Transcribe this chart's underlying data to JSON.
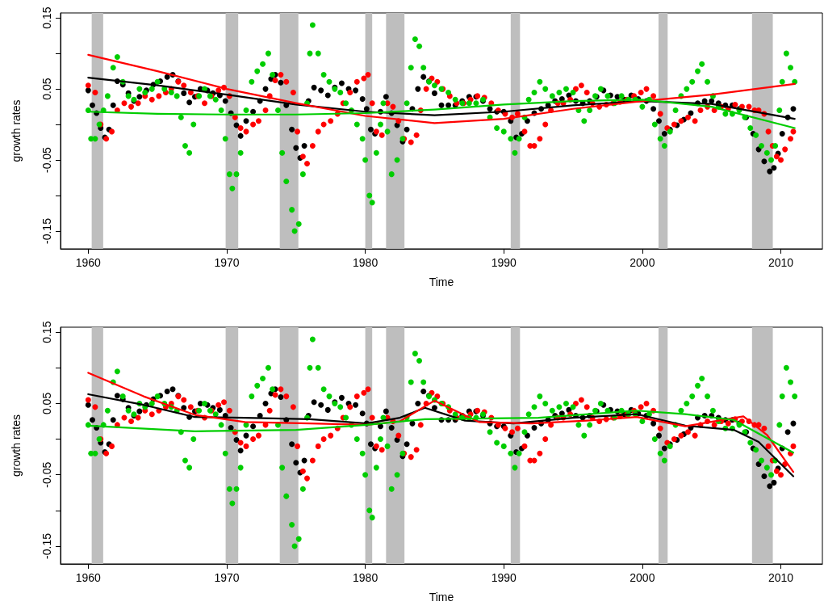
{
  "chart_data": [
    {
      "type": "scatter",
      "xlabel": "Time",
      "ylabel": "growth rates",
      "xlim": [
        1958,
        2013
      ],
      "xticks": [
        1960,
        1970,
        1980,
        1990,
        2000,
        2010
      ],
      "ylim": [
        -0.175,
        0.157
      ],
      "yticks": [
        -0.15,
        {
          "value": -0.1,
          "label": null
        },
        -0.05,
        {
          "value": 0,
          "label": null
        },
        0.05,
        {
          "value": 0.1,
          "label": null
        },
        0.15
      ],
      "grid": false,
      "marker": "circle",
      "bands": [
        {
          "axis": "x",
          "from": 1960.25,
          "to": 1961.08,
          "color": "#bebebe"
        },
        {
          "axis": "x",
          "from": 1969.92,
          "to": 1970.83,
          "color": "#bebebe"
        },
        {
          "axis": "x",
          "from": 1973.83,
          "to": 1975.17,
          "color": "#bebebe"
        },
        {
          "axis": "x",
          "from": 1980.0,
          "to": 1980.5,
          "color": "#bebebe"
        },
        {
          "axis": "x",
          "from": 1981.5,
          "to": 1982.83,
          "color": "#bebebe"
        },
        {
          "axis": "x",
          "from": 1990.5,
          "to": 1991.17,
          "color": "#bebebe"
        },
        {
          "axis": "x",
          "from": 2001.17,
          "to": 2001.83,
          "color": "#bebebe"
        },
        {
          "axis": "x",
          "from": 2007.92,
          "to": 2009.42,
          "color": "#bebebe"
        }
      ],
      "series": [
        {
          "color": "#000000",
          "x": [
            1960.0,
            1960.3,
            1960.6,
            1960.9,
            1961.2,
            1961.5,
            1961.8,
            1962.1,
            1962.5,
            1962.9,
            1963.3,
            1963.7,
            1964.2,
            1964.7,
            1965.2,
            1965.7,
            1966.1,
            1966.5,
            1966.9,
            1967.3,
            1967.7,
            1968.1,
            1968.6,
            1969.0,
            1969.5,
            1969.9,
            1970.3,
            1970.7,
            1971.0,
            1971.4,
            1971.9,
            1972.4,
            1972.8,
            1973.2,
            1973.5,
            1973.9,
            1974.3,
            1974.7,
            1975.0,
            1975.3,
            1975.6,
            1975.9,
            1976.3,
            1976.8,
            1977.3,
            1977.8,
            1978.3,
            1978.8,
            1979.3,
            1979.8,
            1980.1,
            1980.4,
            1980.7,
            1981.1,
            1981.5,
            1981.9,
            1982.3,
            1982.7,
            1983.0,
            1983.4,
            1983.8,
            1984.2,
            1984.6,
            1985.0,
            1985.5,
            1986.0,
            1986.5,
            1987.0,
            1987.5,
            1988.0,
            1988.5,
            1989.0,
            1989.5,
            1990.0,
            1990.5,
            1990.9,
            1991.3,
            1991.7,
            1992.2,
            1992.7,
            1993.2,
            1993.7,
            1994.2,
            1994.7,
            1995.2,
            1995.7,
            1996.2,
            1996.7,
            1997.2,
            1997.7,
            1998.2,
            1998.7,
            1999.2,
            1999.7,
            2000.3,
            2000.8,
            2001.2,
            2001.6,
            2002.0,
            2002.5,
            2003.0,
            2003.5,
            2004.0,
            2004.5,
            2005.0,
            2005.5,
            2006.0,
            2006.5,
            2007.0,
            2007.5,
            2008.0,
            2008.4,
            2008.8,
            2009.2,
            2009.5,
            2009.8,
            2010.1,
            2010.5,
            2010.9
          ],
          "values": [
            0.048,
            0.027,
            0.016,
            -0.005,
            -0.018,
            -0.007,
            0.027,
            0.061,
            0.056,
            0.044,
            0.033,
            0.039,
            0.048,
            0.056,
            0.061,
            0.067,
            0.07,
            0.061,
            0.044,
            0.031,
            0.039,
            0.05,
            0.048,
            0.044,
            0.041,
            0.033,
            0.016,
            -0.001,
            -0.016,
            0.005,
            0.018,
            0.033,
            0.05,
            0.064,
            0.07,
            0.059,
            0.027,
            -0.007,
            -0.033,
            -0.047,
            -0.03,
            0.033,
            0.052,
            0.048,
            0.041,
            0.052,
            0.058,
            0.05,
            0.048,
            0.036,
            0.022,
            -0.007,
            -0.013,
            0.018,
            0.039,
            0.016,
            -0.001,
            -0.024,
            -0.007,
            0.022,
            0.05,
            0.067,
            0.061,
            0.044,
            0.027,
            0.027,
            0.027,
            0.033,
            0.039,
            0.039,
            0.033,
            0.022,
            0.018,
            0.018,
            0.005,
            -0.018,
            -0.013,
            0.005,
            0.016,
            0.022,
            0.027,
            0.033,
            0.036,
            0.041,
            0.033,
            0.03,
            0.033,
            0.039,
            0.048,
            0.041,
            0.039,
            0.035,
            0.041,
            0.036,
            0.033,
            0.022,
            0.005,
            -0.013,
            -0.007,
            -0.001,
            0.007,
            0.016,
            0.03,
            0.033,
            0.033,
            0.03,
            0.027,
            0.027,
            0.022,
            0.01,
            -0.013,
            -0.035,
            -0.052,
            -0.066,
            -0.061,
            -0.041,
            -0.013,
            0.01,
            0.022
          ]
        },
        {
          "color": "#ff0000",
          "x": [
            1960.0,
            1960.5,
            1960.9,
            1961.3,
            1961.7,
            1962.1,
            1962.6,
            1963.1,
            1963.6,
            1964.1,
            1964.6,
            1965.1,
            1965.6,
            1966.0,
            1966.5,
            1966.9,
            1967.4,
            1967.9,
            1968.4,
            1968.9,
            1969.4,
            1969.8,
            1970.2,
            1970.6,
            1971.0,
            1971.4,
            1971.9,
            1972.3,
            1972.8,
            1973.1,
            1973.5,
            1973.9,
            1974.3,
            1974.8,
            1975.1,
            1975.5,
            1975.8,
            1976.2,
            1976.6,
            1977.0,
            1977.5,
            1978.0,
            1978.4,
            1978.9,
            1979.4,
            1979.9,
            1980.2,
            1980.5,
            1980.8,
            1981.2,
            1981.6,
            1982.0,
            1982.4,
            1982.8,
            1983.3,
            1983.7,
            1984.0,
            1984.4,
            1984.8,
            1985.2,
            1985.6,
            1986.1,
            1986.6,
            1987.1,
            1987.6,
            1988.1,
            1988.6,
            1989.1,
            1989.6,
            1990.1,
            1990.6,
            1991.0,
            1991.5,
            1991.9,
            1992.2,
            1992.6,
            1993.0,
            1993.4,
            1993.9,
            1994.3,
            1994.8,
            1995.2,
            1995.6,
            1996.0,
            1996.4,
            1996.9,
            1997.4,
            1997.9,
            1998.4,
            1998.9,
            1999.4,
            1999.9,
            2000.3,
            2000.8,
            2001.3,
            2001.8,
            2002.3,
            2002.8,
            2003.3,
            2003.8,
            2004.2,
            2004.7,
            2005.2,
            2005.7,
            2006.2,
            2006.7,
            2007.2,
            2007.7,
            2008.1,
            2008.4,
            2008.8,
            2009.1,
            2009.4,
            2009.7,
            2010.0,
            2010.3,
            2010.7,
            2010.9
          ],
          "values": [
            0.055,
            0.045,
            0.0,
            -0.02,
            -0.01,
            0.02,
            0.03,
            0.025,
            0.03,
            0.04,
            0.035,
            0.04,
            0.045,
            0.05,
            0.06,
            0.055,
            0.045,
            0.04,
            0.03,
            0.04,
            0.048,
            0.052,
            0.04,
            0.01,
            -0.005,
            -0.01,
            0.0,
            0.005,
            0.02,
            0.04,
            0.062,
            0.07,
            0.06,
            0.045,
            -0.01,
            -0.045,
            -0.055,
            -0.03,
            -0.01,
            0.0,
            0.005,
            0.015,
            0.03,
            0.045,
            0.06,
            0.065,
            0.07,
            0.03,
            -0.01,
            -0.015,
            0.03,
            0.025,
            0.005,
            -0.02,
            -0.025,
            -0.015,
            0.02,
            0.05,
            0.065,
            0.06,
            0.05,
            0.04,
            0.03,
            0.03,
            0.035,
            0.04,
            0.038,
            0.03,
            0.02,
            0.015,
            0.01,
            0.015,
            -0.01,
            -0.03,
            -0.03,
            -0.02,
            0.0,
            0.02,
            0.03,
            0.03,
            0.035,
            0.05,
            0.055,
            0.045,
            0.03,
            0.025,
            0.028,
            0.03,
            0.032,
            0.035,
            0.04,
            0.045,
            0.05,
            0.04,
            0.015,
            -0.005,
            0.0,
            0.005,
            0.01,
            0.005,
            0.02,
            0.025,
            0.02,
            0.025,
            0.022,
            0.028,
            0.025,
            0.025,
            0.02,
            0.02,
            0.015,
            -0.01,
            -0.03,
            -0.045,
            -0.05,
            -0.035,
            -0.02,
            -0.01
          ]
        },
        {
          "color": "#00cd00",
          "x": [
            1960.0,
            1960.2,
            1960.5,
            1960.8,
            1961.1,
            1961.4,
            1961.8,
            1962.1,
            1962.5,
            1962.9,
            1963.3,
            1963.7,
            1964.1,
            1964.6,
            1965.0,
            1965.5,
            1966.0,
            1966.4,
            1966.7,
            1967.0,
            1967.3,
            1967.6,
            1968.0,
            1968.4,
            1968.8,
            1969.2,
            1969.6,
            1969.9,
            1970.2,
            1970.4,
            1970.7,
            1971.0,
            1971.4,
            1971.8,
            1972.2,
            1972.6,
            1973.0,
            1973.3,
            1973.7,
            1974.0,
            1974.3,
            1974.7,
            1974.9,
            1975.2,
            1975.5,
            1975.8,
            1976.0,
            1976.2,
            1976.6,
            1977.0,
            1977.4,
            1977.8,
            1978.2,
            1978.6,
            1979.0,
            1979.4,
            1979.8,
            1980.0,
            1980.3,
            1980.5,
            1980.8,
            1981.1,
            1981.3,
            1981.6,
            1981.9,
            1982.3,
            1982.7,
            1983.0,
            1983.3,
            1983.6,
            1983.9,
            1984.2,
            1984.6,
            1985.0,
            1985.5,
            1986.0,
            1986.5,
            1987.0,
            1987.5,
            1988.0,
            1988.5,
            1989.0,
            1989.5,
            1990.0,
            1990.5,
            1990.8,
            1991.1,
            1991.5,
            1991.8,
            1992.2,
            1992.6,
            1993.0,
            1993.5,
            1994.0,
            1994.5,
            1995.0,
            1995.4,
            1995.8,
            1996.2,
            1996.6,
            1997.0,
            1997.5,
            1998.0,
            1998.5,
            1999.0,
            1999.5,
            2000.0,
            2000.5,
            2000.9,
            2001.3,
            2001.6,
            2002.0,
            2002.4,
            2002.8,
            2003.2,
            2003.6,
            2004.0,
            2004.3,
            2004.7,
            2005.1,
            2005.5,
            2006.0,
            2006.5,
            2007.0,
            2007.4,
            2007.8,
            2008.2,
            2008.6,
            2009.0,
            2009.3,
            2009.6,
            2009.9,
            2010.1,
            2010.4,
            2010.7,
            2011.0
          ],
          "values": [
            0.02,
            -0.02,
            -0.02,
            0.0,
            0.02,
            0.04,
            0.08,
            0.095,
            0.06,
            0.04,
            0.035,
            0.05,
            0.045,
            0.05,
            0.06,
            0.05,
            0.045,
            0.04,
            0.01,
            -0.03,
            -0.04,
            0.0,
            0.04,
            0.05,
            0.04,
            0.035,
            0.02,
            -0.02,
            -0.07,
            -0.09,
            -0.07,
            -0.04,
            0.02,
            0.06,
            0.075,
            0.085,
            0.1,
            0.07,
            0.02,
            -0.04,
            -0.08,
            -0.12,
            -0.15,
            -0.14,
            -0.07,
            0.03,
            0.1,
            0.14,
            0.1,
            0.07,
            0.06,
            0.05,
            0.045,
            0.03,
            0.02,
            0.0,
            -0.02,
            -0.05,
            -0.1,
            -0.11,
            -0.04,
            0.0,
            0.03,
            -0.01,
            -0.07,
            -0.05,
            -0.02,
            0.03,
            0.08,
            0.12,
            0.11,
            0.08,
            0.06,
            0.055,
            0.05,
            0.045,
            0.035,
            0.03,
            0.03,
            0.03,
            0.035,
            0.01,
            -0.005,
            -0.01,
            -0.02,
            -0.04,
            -0.02,
            0.01,
            0.035,
            0.045,
            0.06,
            0.05,
            0.04,
            0.045,
            0.05,
            0.045,
            0.02,
            0.005,
            0.02,
            0.04,
            0.05,
            0.04,
            0.03,
            0.04,
            0.035,
            0.035,
            0.025,
            0.035,
            0.0,
            -0.02,
            -0.03,
            -0.01,
            0.02,
            0.04,
            0.05,
            0.06,
            0.075,
            0.085,
            0.06,
            0.04,
            0.025,
            0.015,
            0.015,
            0.02,
            0.01,
            -0.005,
            -0.015,
            -0.03,
            -0.04,
            -0.05,
            -0.03,
            0.02,
            0.06,
            0.1,
            0.08,
            0.06
          ]
        },
        {
          "type": "line",
          "marker": "none",
          "color": "#000000",
          "x": [
            1960,
            1965,
            1970,
            1975,
            1980,
            1985,
            1990,
            1995,
            2000,
            2005,
            2011
          ],
          "values": [
            0.066,
            0.055,
            0.042,
            0.028,
            0.018,
            0.013,
            0.018,
            0.027,
            0.033,
            0.029,
            0.008
          ]
        },
        {
          "type": "line",
          "marker": "none",
          "color": "#ff0000",
          "x": [
            1960,
            1965,
            1970,
            1975,
            1980,
            1985,
            1990,
            1995,
            2000,
            2005,
            2011
          ],
          "values": [
            0.098,
            0.075,
            0.05,
            0.03,
            0.012,
            0.002,
            0.008,
            0.022,
            0.033,
            0.042,
            0.057
          ]
        },
        {
          "type": "line",
          "marker": "none",
          "color": "#00cd00",
          "x": [
            1960,
            1965,
            1970,
            1975,
            1980,
            1985,
            1990,
            1995,
            2000,
            2005,
            2011
          ],
          "values": [
            0.018,
            0.015,
            0.014,
            0.014,
            0.016,
            0.021,
            0.028,
            0.033,
            0.035,
            0.025,
            -0.005
          ]
        }
      ]
    },
    {
      "type": "scatter",
      "xlabel": "Time",
      "ylabel": "growth rates",
      "xlim": [
        1958,
        2013
      ],
      "xticks": [
        1960,
        1970,
        1980,
        1990,
        2000,
        2010
      ],
      "ylim": [
        -0.175,
        0.157
      ],
      "yticks": [
        -0.15,
        {
          "value": -0.1,
          "label": null
        },
        -0.05,
        {
          "value": 0,
          "label": null
        },
        0.05,
        {
          "value": 0.1,
          "label": null
        },
        0.15
      ],
      "grid": false,
      "marker": "circle",
      "bands": [
        {
          "axis": "x",
          "from": 1960.25,
          "to": 1961.08,
          "color": "#bebebe"
        },
        {
          "axis": "x",
          "from": 1969.92,
          "to": 1970.83,
          "color": "#bebebe"
        },
        {
          "axis": "x",
          "from": 1973.83,
          "to": 1975.17,
          "color": "#bebebe"
        },
        {
          "axis": "x",
          "from": 1980.0,
          "to": 1980.5,
          "color": "#bebebe"
        },
        {
          "axis": "x",
          "from": 1981.5,
          "to": 1982.83,
          "color": "#bebebe"
        },
        {
          "axis": "x",
          "from": 1990.5,
          "to": 1991.17,
          "color": "#bebebe"
        },
        {
          "axis": "x",
          "from": 2001.17,
          "to": 2001.83,
          "color": "#bebebe"
        },
        {
          "axis": "x",
          "from": 2007.92,
          "to": 2009.42,
          "color": "#bebebe"
        }
      ],
      "series": [
        {
          "color": "#000000",
          "x": [
            1960.0,
            1960.3,
            1960.6,
            1960.9,
            1961.2,
            1961.5,
            1961.8,
            1962.1,
            1962.5,
            1962.9,
            1963.3,
            1963.7,
            1964.2,
            1964.7,
            1965.2,
            1965.7,
            1966.1,
            1966.5,
            1966.9,
            1967.3,
            1967.7,
            1968.1,
            1968.6,
            1969.0,
            1969.5,
            1969.9,
            1970.3,
            1970.7,
            1971.0,
            1971.4,
            1971.9,
            1972.4,
            1972.8,
            1973.2,
            1973.5,
            1973.9,
            1974.3,
            1974.7,
            1975.0,
            1975.3,
            1975.6,
            1975.9,
            1976.3,
            1976.8,
            1977.3,
            1977.8,
            1978.3,
            1978.8,
            1979.3,
            1979.8,
            1980.1,
            1980.4,
            1980.7,
            1981.1,
            1981.5,
            1981.9,
            1982.3,
            1982.7,
            1983.0,
            1983.4,
            1983.8,
            1984.2,
            1984.6,
            1985.0,
            1985.5,
            1986.0,
            1986.5,
            1987.0,
            1987.5,
            1988.0,
            1988.5,
            1989.0,
            1989.5,
            1990.0,
            1990.5,
            1990.9,
            1991.3,
            1991.7,
            1992.2,
            1992.7,
            1993.2,
            1993.7,
            1994.2,
            1994.7,
            1995.2,
            1995.7,
            1996.2,
            1996.7,
            1997.2,
            1997.7,
            1998.2,
            1998.7,
            1999.2,
            1999.7,
            2000.3,
            2000.8,
            2001.2,
            2001.6,
            2002.0,
            2002.5,
            2003.0,
            2003.5,
            2004.0,
            2004.5,
            2005.0,
            2005.5,
            2006.0,
            2006.5,
            2007.0,
            2007.5,
            2008.0,
            2008.4,
            2008.8,
            2009.2,
            2009.5,
            2009.8,
            2010.1,
            2010.5,
            2010.9
          ],
          "values": [
            0.048,
            0.027,
            0.016,
            -0.005,
            -0.018,
            -0.007,
            0.027,
            0.061,
            0.056,
            0.044,
            0.033,
            0.039,
            0.048,
            0.056,
            0.061,
            0.067,
            0.07,
            0.061,
            0.044,
            0.031,
            0.039,
            0.05,
            0.048,
            0.044,
            0.041,
            0.033,
            0.016,
            -0.001,
            -0.016,
            0.005,
            0.018,
            0.033,
            0.05,
            0.064,
            0.07,
            0.059,
            0.027,
            -0.007,
            -0.033,
            -0.047,
            -0.03,
            0.033,
            0.052,
            0.048,
            0.041,
            0.052,
            0.058,
            0.05,
            0.048,
            0.036,
            0.022,
            -0.007,
            -0.013,
            0.018,
            0.039,
            0.016,
            -0.001,
            -0.024,
            -0.007,
            0.022,
            0.05,
            0.067,
            0.061,
            0.044,
            0.027,
            0.027,
            0.027,
            0.033,
            0.039,
            0.039,
            0.033,
            0.022,
            0.018,
            0.018,
            0.005,
            -0.018,
            -0.013,
            0.005,
            0.016,
            0.022,
            0.027,
            0.033,
            0.036,
            0.041,
            0.033,
            0.03,
            0.033,
            0.039,
            0.048,
            0.041,
            0.039,
            0.035,
            0.041,
            0.036,
            0.033,
            0.022,
            0.005,
            -0.013,
            -0.007,
            -0.001,
            0.007,
            0.016,
            0.03,
            0.033,
            0.033,
            0.03,
            0.027,
            0.027,
            0.022,
            0.01,
            -0.013,
            -0.035,
            -0.052,
            -0.066,
            -0.061,
            -0.041,
            -0.013,
            0.01,
            0.022
          ]
        },
        {
          "color": "#ff0000",
          "x": [
            1960.0,
            1960.5,
            1960.9,
            1961.3,
            1961.7,
            1962.1,
            1962.6,
            1963.1,
            1963.6,
            1964.1,
            1964.6,
            1965.1,
            1965.6,
            1966.0,
            1966.5,
            1966.9,
            1967.4,
            1967.9,
            1968.4,
            1968.9,
            1969.4,
            1969.8,
            1970.2,
            1970.6,
            1971.0,
            1971.4,
            1971.9,
            1972.3,
            1972.8,
            1973.1,
            1973.5,
            1973.9,
            1974.3,
            1974.8,
            1975.1,
            1975.5,
            1975.8,
            1976.2,
            1976.6,
            1977.0,
            1977.5,
            1978.0,
            1978.4,
            1978.9,
            1979.4,
            1979.9,
            1980.2,
            1980.5,
            1980.8,
            1981.2,
            1981.6,
            1982.0,
            1982.4,
            1982.8,
            1983.3,
            1983.7,
            1984.0,
            1984.4,
            1984.8,
            1985.2,
            1985.6,
            1986.1,
            1986.6,
            1987.1,
            1987.6,
            1988.1,
            1988.6,
            1989.1,
            1989.6,
            1990.1,
            1990.6,
            1991.0,
            1991.5,
            1991.9,
            1992.2,
            1992.6,
            1993.0,
            1993.4,
            1993.9,
            1994.3,
            1994.8,
            1995.2,
            1995.6,
            1996.0,
            1996.4,
            1996.9,
            1997.4,
            1997.9,
            1998.4,
            1998.9,
            1999.4,
            1999.9,
            2000.3,
            2000.8,
            2001.3,
            2001.8,
            2002.3,
            2002.8,
            2003.3,
            2003.8,
            2004.2,
            2004.7,
            2005.2,
            2005.7,
            2006.2,
            2006.7,
            2007.2,
            2007.7,
            2008.1,
            2008.4,
            2008.8,
            2009.1,
            2009.4,
            2009.7,
            2010.0,
            2010.3,
            2010.7,
            2010.9
          ],
          "values": [
            0.055,
            0.045,
            0.0,
            -0.02,
            -0.01,
            0.02,
            0.03,
            0.025,
            0.03,
            0.04,
            0.035,
            0.04,
            0.045,
            0.05,
            0.06,
            0.055,
            0.045,
            0.04,
            0.03,
            0.04,
            0.048,
            0.052,
            0.04,
            0.01,
            -0.005,
            -0.01,
            0.0,
            0.005,
            0.02,
            0.04,
            0.062,
            0.07,
            0.06,
            0.045,
            -0.01,
            -0.045,
            -0.055,
            -0.03,
            -0.01,
            0.0,
            0.005,
            0.015,
            0.03,
            0.045,
            0.06,
            0.065,
            0.07,
            0.03,
            -0.01,
            -0.015,
            0.03,
            0.025,
            0.005,
            -0.02,
            -0.025,
            -0.015,
            0.02,
            0.05,
            0.065,
            0.06,
            0.05,
            0.04,
            0.03,
            0.03,
            0.035,
            0.04,
            0.038,
            0.03,
            0.02,
            0.015,
            0.01,
            0.015,
            -0.01,
            -0.03,
            -0.03,
            -0.02,
            0.0,
            0.02,
            0.03,
            0.03,
            0.035,
            0.05,
            0.055,
            0.045,
            0.03,
            0.025,
            0.028,
            0.03,
            0.032,
            0.035,
            0.04,
            0.045,
            0.05,
            0.04,
            0.015,
            -0.005,
            0.0,
            0.005,
            0.01,
            0.005,
            0.02,
            0.025,
            0.02,
            0.025,
            0.022,
            0.028,
            0.025,
            0.025,
            0.02,
            0.02,
            0.015,
            -0.01,
            -0.03,
            -0.045,
            -0.05,
            -0.035,
            -0.02,
            -0.01
          ]
        },
        {
          "color": "#00cd00",
          "x": [
            1960.0,
            1960.2,
            1960.5,
            1960.8,
            1961.1,
            1961.4,
            1961.8,
            1962.1,
            1962.5,
            1962.9,
            1963.3,
            1963.7,
            1964.1,
            1964.6,
            1965.0,
            1965.5,
            1966.0,
            1966.4,
            1966.7,
            1967.0,
            1967.3,
            1967.6,
            1968.0,
            1968.4,
            1968.8,
            1969.2,
            1969.6,
            1969.9,
            1970.2,
            1970.4,
            1970.7,
            1971.0,
            1971.4,
            1971.8,
            1972.2,
            1972.6,
            1973.0,
            1973.3,
            1973.7,
            1974.0,
            1974.3,
            1974.7,
            1974.9,
            1975.2,
            1975.5,
            1975.8,
            1976.0,
            1976.2,
            1976.6,
            1977.0,
            1977.4,
            1977.8,
            1978.2,
            1978.6,
            1979.0,
            1979.4,
            1979.8,
            1980.0,
            1980.3,
            1980.5,
            1980.8,
            1981.1,
            1981.3,
            1981.6,
            1981.9,
            1982.3,
            1982.7,
            1983.0,
            1983.3,
            1983.6,
            1983.9,
            1984.2,
            1984.6,
            1985.0,
            1985.5,
            1986.0,
            1986.5,
            1987.0,
            1987.5,
            1988.0,
            1988.5,
            1989.0,
            1989.5,
            1990.0,
            1990.5,
            1990.8,
            1991.1,
            1991.5,
            1991.8,
            1992.2,
            1992.6,
            1993.0,
            1993.5,
            1994.0,
            1994.5,
            1995.0,
            1995.4,
            1995.8,
            1996.2,
            1996.6,
            1997.0,
            1997.5,
            1998.0,
            1998.5,
            1999.0,
            1999.5,
            2000.0,
            2000.5,
            2000.9,
            2001.3,
            2001.6,
            2002.0,
            2002.4,
            2002.8,
            2003.2,
            2003.6,
            2004.0,
            2004.3,
            2004.7,
            2005.1,
            2005.5,
            2006.0,
            2006.5,
            2007.0,
            2007.4,
            2007.8,
            2008.2,
            2008.6,
            2009.0,
            2009.3,
            2009.6,
            2009.9,
            2010.1,
            2010.4,
            2010.7,
            2011.0
          ],
          "values": [
            0.02,
            -0.02,
            -0.02,
            0.0,
            0.02,
            0.04,
            0.08,
            0.095,
            0.06,
            0.04,
            0.035,
            0.05,
            0.045,
            0.05,
            0.06,
            0.05,
            0.045,
            0.04,
            0.01,
            -0.03,
            -0.04,
            0.0,
            0.04,
            0.05,
            0.04,
            0.035,
            0.02,
            -0.02,
            -0.07,
            -0.09,
            -0.07,
            -0.04,
            0.02,
            0.06,
            0.075,
            0.085,
            0.1,
            0.07,
            0.02,
            -0.04,
            -0.08,
            -0.12,
            -0.15,
            -0.14,
            -0.07,
            0.03,
            0.1,
            0.14,
            0.1,
            0.07,
            0.06,
            0.05,
            0.045,
            0.03,
            0.02,
            0.0,
            -0.02,
            -0.05,
            -0.1,
            -0.11,
            -0.04,
            0.0,
            0.03,
            -0.01,
            -0.07,
            -0.05,
            -0.02,
            0.03,
            0.08,
            0.12,
            0.11,
            0.08,
            0.06,
            0.055,
            0.05,
            0.045,
            0.035,
            0.03,
            0.03,
            0.03,
            0.035,
            0.01,
            -0.005,
            -0.01,
            -0.02,
            -0.04,
            -0.02,
            0.01,
            0.035,
            0.045,
            0.06,
            0.05,
            0.04,
            0.045,
            0.05,
            0.045,
            0.02,
            0.005,
            0.02,
            0.04,
            0.05,
            0.04,
            0.03,
            0.04,
            0.035,
            0.035,
            0.025,
            0.035,
            0.0,
            -0.02,
            -0.03,
            -0.01,
            0.02,
            0.04,
            0.05,
            0.06,
            0.075,
            0.085,
            0.06,
            0.04,
            0.025,
            0.015,
            0.015,
            0.02,
            0.01,
            -0.005,
            -0.015,
            -0.03,
            -0.04,
            -0.05,
            -0.03,
            0.02,
            0.06,
            0.1,
            0.08,
            0.06
          ]
        },
        {
          "type": "line",
          "marker": "none",
          "color": "#000000",
          "x": [
            1960,
            1964,
            1967.7,
            1971.3,
            1976,
            1980.1,
            1982.5,
            1984.3,
            1987.2,
            1990.7,
            1995,
            1999.6,
            2003.1,
            2006.6,
            2008.4,
            2010.9
          ],
          "values": [
            0.063,
            0.048,
            0.031,
            0.03,
            0.028,
            0.022,
            0.03,
            0.044,
            0.026,
            0.022,
            0.03,
            0.035,
            0.019,
            0.013,
            -0.004,
            -0.052
          ]
        },
        {
          "type": "line",
          "marker": "none",
          "color": "#ff0000",
          "x": [
            1960,
            1964,
            1967.7,
            1971.3,
            1976,
            1980.1,
            1982.5,
            1985,
            1988.2,
            1992,
            1996,
            1999.6,
            2003.1,
            2007.3,
            2009,
            2010.9
          ],
          "values": [
            0.093,
            0.06,
            0.034,
            0.024,
            0.022,
            0.02,
            0.025,
            0.054,
            0.024,
            0.022,
            0.026,
            0.031,
            0.018,
            0.032,
            0.006,
            -0.046
          ]
        },
        {
          "type": "line",
          "marker": "none",
          "color": "#00cd00",
          "x": [
            1960,
            1967.7,
            1975,
            1980.1,
            1984.3,
            1992.5,
            1999.6,
            2003.1,
            2006.6,
            2010.9
          ],
          "values": [
            0.019,
            0.011,
            0.013,
            0.02,
            0.028,
            0.03,
            0.04,
            0.035,
            0.027,
            -0.019
          ]
        }
      ]
    }
  ]
}
